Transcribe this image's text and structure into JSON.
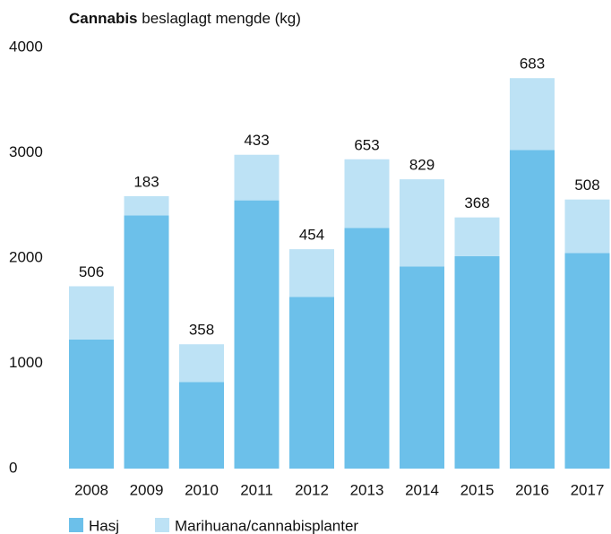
{
  "chart_data": {
    "type": "stacked_bar",
    "title_bold": "Cannabis",
    "title": "beslaglagt mengde (kg)",
    "categories": [
      "2008",
      "2009",
      "2010",
      "2011",
      "2012",
      "2013",
      "2014",
      "2015",
      "2016",
      "2017"
    ],
    "series": [
      {
        "name": "Hasj",
        "color": "#6cc0ea",
        "values": [
          1226,
          2405,
          823,
          2548,
          1630,
          2285,
          1919,
          2018,
          3026,
          2048
        ]
      },
      {
        "name": "Marihuana/cannabisplanter",
        "color": "#bde2f5",
        "values": [
          506,
          183,
          358,
          433,
          454,
          653,
          829,
          368,
          683,
          508
        ]
      }
    ],
    "ylim": [
      0,
      4000
    ],
    "yticks": [
      0,
      1000,
      2000,
      3000,
      4000
    ],
    "grid": false
  }
}
